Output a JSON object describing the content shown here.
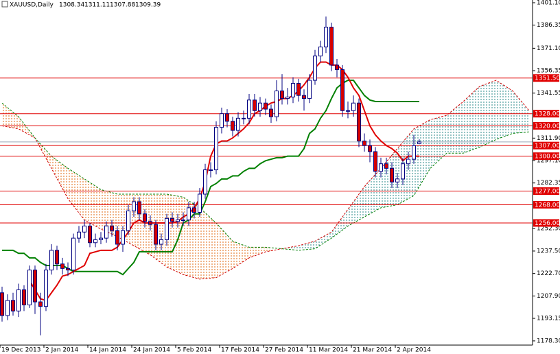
{
  "chart_data": {
    "type": "candlestick",
    "title": "XAUUSD,Daily",
    "categories": [
      "19 Dec 2013",
      null,
      null,
      null,
      null,
      null,
      null,
      null,
      "2 Jan 2014",
      null,
      null,
      null,
      null,
      null,
      null,
      null,
      "14 Jan 2014",
      null,
      null,
      null,
      null,
      null,
      null,
      null,
      "24 Jan 2014",
      null,
      null,
      null,
      null,
      null,
      null,
      null,
      "5 Feb 2014",
      null,
      null,
      null,
      null,
      null,
      null,
      null,
      "17 Feb 2014",
      null,
      null,
      null,
      null,
      null,
      null,
      null,
      "27 Feb 2014",
      null,
      null,
      null,
      null,
      null,
      null,
      null,
      "11 Mar 2014",
      null,
      null,
      null,
      null,
      null,
      null,
      null,
      "21 Mar 2014",
      null,
      null,
      null,
      null,
      null,
      null,
      null,
      "2 Apr 2014",
      null,
      null,
      null,
      null
    ],
    "open": [
      1210,
      1195,
      1205,
      1198,
      1212,
      1202,
      1225,
      1204,
      1201,
      1225,
      1238,
      1229,
      1226,
      1225,
      1246,
      1250,
      1254,
      1243,
      1245,
      1246,
      1254,
      1251,
      1242,
      1251,
      1264,
      1270,
      1262,
      1257,
      1255,
      1242,
      1245,
      1259,
      1257,
      1258,
      1258,
      1266,
      1263,
      1275,
      1291,
      1291,
      1319,
      1328,
      1323,
      1317,
      1325,
      1325,
      1337,
      1330,
      1335,
      1331,
      1326,
      1343,
      1338,
      1339,
      1348,
      1340,
      1338,
      1350,
      1366,
      1372,
      1385,
      1360,
      1357,
      1330,
      1330,
      1335,
      1310,
      1307,
      1303,
      1290,
      1295,
      1292,
      1283,
      1285,
      1295,
      1298,
      1308.34
    ],
    "high": [
      1214,
      1209,
      1210,
      1216,
      1215,
      1228,
      1228,
      1210,
      1229,
      1242,
      1241,
      1233,
      1230,
      1249,
      1254,
      1258,
      1256,
      1249,
      1250,
      1257,
      1258,
      1254,
      1254,
      1268,
      1273,
      1273,
      1265,
      1261,
      1258,
      1249,
      1262,
      1263,
      1262,
      1263,
      1270,
      1270,
      1279,
      1295,
      1296,
      1323,
      1332,
      1331,
      1326,
      1329,
      1330,
      1341,
      1341,
      1339,
      1338,
      1334,
      1350,
      1354,
      1345,
      1352,
      1351,
      1344,
      1354,
      1370,
      1376,
      1392,
      1388,
      1364,
      1360,
      1336,
      1340,
      1338,
      1315,
      1311,
      1306,
      1299,
      1299,
      1296,
      1289,
      1299,
      1303,
      1314,
      1311.11
    ],
    "low": [
      1191,
      1192,
      1195,
      1194,
      1198,
      1200,
      1196,
      1182,
      1198,
      1222,
      1225,
      1222,
      1221,
      1222,
      1243,
      1246,
      1240,
      1240,
      1242,
      1243,
      1247,
      1238,
      1237,
      1248,
      1260,
      1258,
      1253,
      1251,
      1238,
      1238,
      1241,
      1253,
      1253,
      1254,
      1254,
      1259,
      1260,
      1272,
      1286,
      1288,
      1315,
      1319,
      1313,
      1313,
      1321,
      1321,
      1326,
      1326,
      1327,
      1322,
      1323,
      1334,
      1334,
      1335,
      1336,
      1330,
      1335,
      1347,
      1362,
      1368,
      1356,
      1352,
      1326,
      1325,
      1326,
      1306,
      1303,
      1296,
      1286,
      1286,
      1288,
      1279,
      1279,
      1281,
      1291,
      1295,
      1307.88
    ],
    "close": [
      1195,
      1205,
      1198,
      1212,
      1202,
      1225,
      1204,
      1201,
      1225,
      1238,
      1229,
      1226,
      1225,
      1246,
      1250,
      1254,
      1243,
      1245,
      1246,
      1254,
      1251,
      1242,
      1251,
      1264,
      1270,
      1262,
      1257,
      1255,
      1242,
      1245,
      1259,
      1257,
      1258,
      1258,
      1266,
      1263,
      1275,
      1291,
      1291,
      1319,
      1328,
      1323,
      1317,
      1325,
      1325,
      1337,
      1330,
      1335,
      1331,
      1326,
      1343,
      1338,
      1339,
      1348,
      1340,
      1338,
      1350,
      1366,
      1372,
      1385,
      1360,
      1357,
      1330,
      1330,
      1335,
      1310,
      1307,
      1303,
      1290,
      1295,
      1292,
      1283,
      1285,
      1295,
      1298,
      1307,
      1309.39
    ],
    "up_color": "#ffffff",
    "down_color": "#d40000",
    "outline_color": "#000080",
    "lines": [
      {
        "color": "#e00000",
        "values": [
          null,
          null,
          null,
          null,
          null,
          1218,
          1212,
          1206,
          1205,
          1210,
          1215,
          1221,
          1222,
          1224,
          1226,
          1228,
          1236,
          1237,
          1238,
          1238,
          1238,
          1240,
          1245,
          1250,
          1256,
          1258,
          1256,
          1256,
          1256,
          1256,
          1256,
          1256,
          1257,
          1260,
          1262,
          1266,
          1272,
          1283,
          1300,
          1308,
          1310,
          1310,
          1312,
          1315,
          1318,
          1322,
          1328,
          1330,
          1333,
          1335,
          1336,
          1338,
          1338,
          1340,
          1343,
          1347,
          1352,
          1358,
          1362,
          1362,
          1360,
          1360,
          1357,
          1352,
          1345,
          1340,
          1330,
          1320,
          1314,
          1310,
          1307,
          1305,
          1302,
          1297,
          1300,
          1300,
          1300
        ]
      },
      {
        "color": "#008000",
        "values": [
          1238,
          1238,
          1238,
          1236,
          1236,
          1233,
          1233,
          1230,
          1228,
          1228,
          1228,
          1228,
          1226,
          1224,
          1224,
          1224,
          1224,
          1224,
          1224,
          1224,
          1224,
          1224,
          1222,
          1226,
          1230,
          1237,
          1237,
          1237,
          1237,
          1237,
          1237,
          1237,
          1245,
          1256,
          1258,
          1262,
          1262,
          1270,
          1280,
          1282,
          1285,
          1285,
          1287,
          1287,
          1290,
          1292,
          1292,
          1295,
          1297,
          1298,
          1299,
          1299,
          1300,
          1300,
          1300,
          1305,
          1315,
          1318,
          1325,
          1330,
          1338,
          1345,
          1348,
          1350,
          1350,
          1345,
          1340,
          1337,
          1336,
          1336,
          1336,
          1336,
          1336,
          1336,
          1336,
          1336,
          1336
        ]
      }
    ],
    "cloud": {
      "x": [
        0,
        3,
        6,
        9,
        12,
        15,
        18,
        21,
        24,
        27,
        30,
        33,
        36,
        39,
        42,
        45,
        48,
        51,
        54,
        57,
        60,
        63,
        66,
        69,
        72,
        75,
        78,
        81,
        84,
        87,
        90,
        93,
        96
      ],
      "span_a": [
        1320,
        1318,
        1312,
        1292,
        1272,
        1258,
        1252,
        1247,
        1241,
        1235,
        1227,
        1222,
        1219,
        1220,
        1226,
        1233,
        1237,
        1239,
        1241,
        1244,
        1250,
        1265,
        1280,
        1292,
        1305,
        1318,
        1324,
        1327,
        1336,
        1346,
        1350,
        1343,
        1330
      ],
      "span_b": [
        1335,
        1326,
        1312,
        1300,
        1292,
        1285,
        1278,
        1275,
        1275,
        1275,
        1275,
        1273,
        1266,
        1256,
        1244,
        1240,
        1240,
        1239,
        1238,
        1239,
        1246,
        1254,
        1260,
        1266,
        1268,
        1274,
        1292,
        1302,
        1302,
        1306,
        1311,
        1315,
        1316
      ],
      "span_a_color": "#d00000",
      "span_b_color": "#008000",
      "up_fill": "#2a8a8a",
      "down_fill": "#e06a10"
    },
    "levels": [
      {
        "value": 1351.5,
        "label": "1351.50"
      },
      {
        "value": 1328,
        "label": "1328.00"
      },
      {
        "value": 1320,
        "label": "1320.00"
      },
      {
        "value": 1307,
        "label": "1307.00"
      },
      {
        "value": 1300,
        "label": "1300.00"
      },
      {
        "value": 1277,
        "label": "1277.00"
      },
      {
        "value": 1268,
        "label": "1268.00"
      },
      {
        "value": 1256,
        "label": "1256.00"
      }
    ],
    "level_color": "#e00000",
    "price_line_color": "#9aa8b8",
    "ylim": [
      1176.9,
      1402.9
    ],
    "yticks": [
      {
        "value": 1401.1,
        "label": "1401.10"
      },
      1386.35,
      {
        "value": 1371.1,
        "label": "1371.10"
      },
      1356.35,
      1341.55,
      {
        "value": 1311.9,
        "label": "1311.90"
      },
      {
        "value": 1297.1,
        "label": "1297.10"
      },
      1282.35,
      {
        "value": 1252.3,
        "label": "1252.30"
      },
      {
        "value": 1237.5,
        "label": "1237.50"
      },
      {
        "value": 1222.7,
        "label": "1222.70"
      },
      {
        "value": 1207.9,
        "label": "1207.90"
      },
      1193.15,
      {
        "value": 1178.3,
        "label": "1178.30"
      }
    ]
  }
}
